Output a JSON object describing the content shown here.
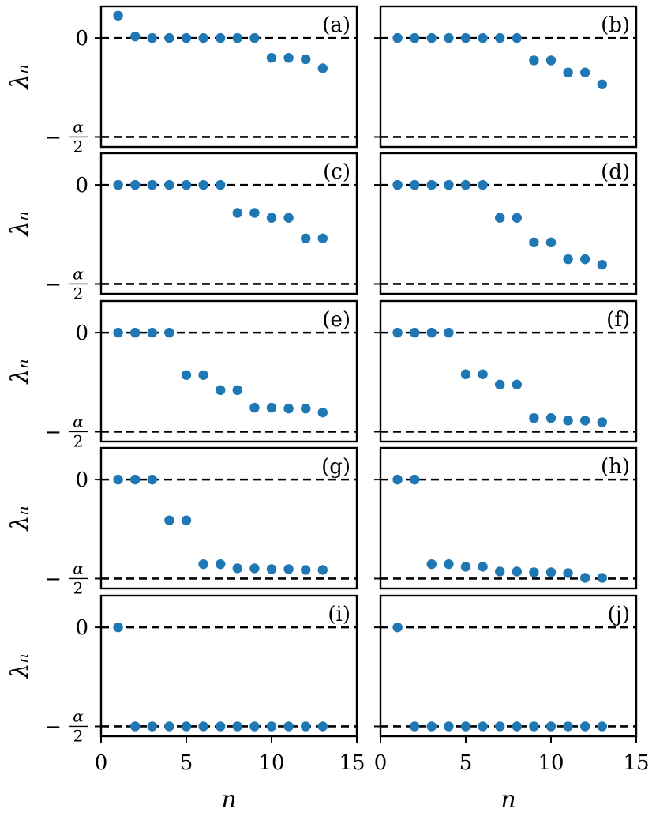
{
  "chart_data": [
    {
      "type": "scatter",
      "label": "(a)",
      "x": [
        1,
        2,
        3,
        4,
        5,
        6,
        7,
        8,
        9,
        10,
        11,
        12,
        13
      ],
      "y": [
        0.113,
        0.008,
        0,
        0,
        0,
        0,
        0,
        0,
        0,
        -0.1,
        -0.1,
        -0.107,
        -0.153
      ]
    },
    {
      "type": "scatter",
      "label": "(b)",
      "x": [
        1,
        2,
        3,
        4,
        5,
        6,
        7,
        8,
        9,
        10,
        11,
        12,
        13
      ],
      "y": [
        0,
        0,
        0,
        0,
        0,
        0,
        0,
        0,
        -0.113,
        -0.113,
        -0.174,
        -0.174,
        -0.234
      ]
    },
    {
      "type": "scatter",
      "label": "(c)",
      "x": [
        1,
        2,
        3,
        4,
        5,
        6,
        7,
        8,
        9,
        10,
        11,
        12,
        13
      ],
      "y": [
        0,
        0,
        0,
        0,
        0,
        0,
        0,
        -0.141,
        -0.141,
        -0.166,
        -0.166,
        -0.27,
        -0.27
      ]
    },
    {
      "type": "scatter",
      "label": "(d)",
      "x": [
        1,
        2,
        3,
        4,
        5,
        6,
        7,
        8,
        9,
        10,
        11,
        12,
        13
      ],
      "y": [
        0,
        0,
        0,
        0,
        0,
        0,
        -0.166,
        -0.166,
        -0.29,
        -0.29,
        -0.375,
        -0.375,
        -0.403
      ]
    },
    {
      "type": "scatter",
      "label": "(e)",
      "x": [
        1,
        2,
        3,
        4,
        5,
        6,
        7,
        8,
        9,
        10,
        11,
        12,
        13
      ],
      "y": [
        0,
        0,
        0,
        0,
        -0.214,
        -0.214,
        -0.29,
        -0.29,
        -0.379,
        -0.379,
        -0.383,
        -0.383,
        -0.403
      ]
    },
    {
      "type": "scatter",
      "label": "(f)",
      "x": [
        1,
        2,
        3,
        4,
        5,
        6,
        7,
        8,
        9,
        10,
        11,
        12,
        13
      ],
      "y": [
        0,
        0,
        0,
        0,
        -0.21,
        -0.21,
        -0.262,
        -0.262,
        -0.431,
        -0.431,
        -0.444,
        -0.444,
        -0.452
      ]
    },
    {
      "type": "scatter",
      "label": "(g)",
      "x": [
        1,
        2,
        3,
        4,
        5,
        6,
        7,
        8,
        9,
        10,
        11,
        12,
        13
      ],
      "y": [
        0,
        0,
        0,
        -0.206,
        -0.206,
        -0.427,
        -0.427,
        -0.448,
        -0.448,
        -0.452,
        -0.452,
        -0.456,
        -0.456
      ]
    },
    {
      "type": "scatter",
      "label": "(h)",
      "x": [
        1,
        2,
        3,
        4,
        5,
        6,
        7,
        8,
        9,
        10,
        11,
        12,
        13
      ],
      "y": [
        0,
        0,
        -0.427,
        -0.427,
        -0.44,
        -0.44,
        -0.464,
        -0.464,
        -0.468,
        -0.468,
        -0.472,
        -0.496,
        -0.496
      ]
    },
    {
      "type": "scatter",
      "label": "(i)",
      "x": [
        1,
        2,
        3,
        4,
        5,
        6,
        7,
        8,
        9,
        10,
        11,
        12,
        13
      ],
      "y": [
        0,
        -0.5,
        -0.5,
        -0.5,
        -0.5,
        -0.5,
        -0.5,
        -0.5,
        -0.5,
        -0.5,
        -0.5,
        -0.5,
        -0.5
      ]
    },
    {
      "type": "scatter",
      "label": "(j)",
      "x": [
        1,
        2,
        3,
        4,
        5,
        6,
        7,
        8,
        9,
        10,
        11,
        12,
        13
      ],
      "y": [
        0,
        -0.5,
        -0.5,
        -0.5,
        -0.5,
        -0.5,
        -0.5,
        -0.5,
        -0.5,
        -0.5,
        -0.5,
        -0.5,
        -0.5
      ]
    }
  ],
  "axes": {
    "xlabel": "n",
    "ylabel": "λₙ",
    "xlim": [
      0,
      15
    ],
    "ylim": [
      -0.55,
      0.16
    ],
    "xticks": [
      0,
      5,
      10,
      15
    ],
    "yticks": [
      {
        "value": 0,
        "text": "0"
      },
      {
        "value": -0.5,
        "text": "α/2",
        "sign": "−"
      }
    ],
    "reference_lines": [
      0,
      -0.5
    ]
  },
  "colors": {
    "marker": "#1f77b4",
    "reference_line": "#000000",
    "frame": "#000000"
  }
}
